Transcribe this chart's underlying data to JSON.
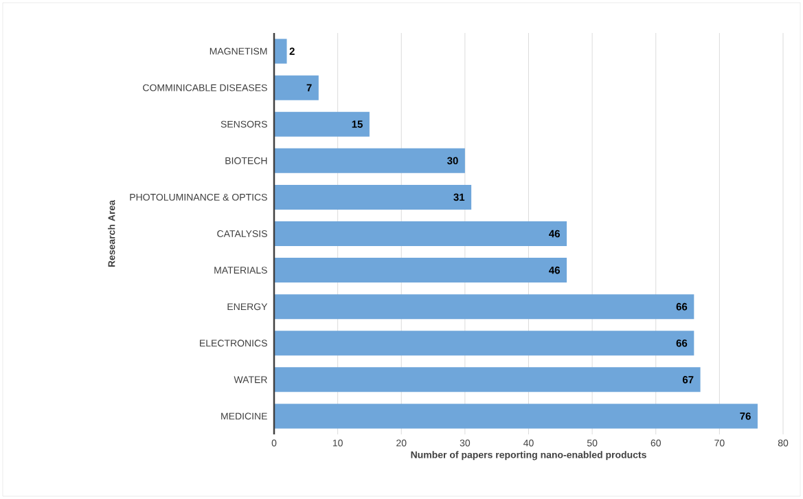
{
  "chart_data": {
    "type": "bar",
    "orientation": "horizontal",
    "xlabel": "Number of papers reporting nano-enabled products",
    "ylabel": "Research Area",
    "categories": [
      "MAGNETISM",
      "COMMINICABLE DISEASES",
      "SENSORS",
      "BIOTECH",
      "PHOTOLUMINANCE & OPTICS",
      "CATALYSIS",
      "MATERIALS",
      "ENERGY",
      "ELECTRONICS",
      "WATER",
      "MEDICINE"
    ],
    "values": [
      2,
      7,
      15,
      30,
      31,
      46,
      46,
      66,
      66,
      67,
      76
    ],
    "color": "#6fa6da",
    "xlim": [
      0,
      80
    ],
    "xticks": [
      0,
      10,
      20,
      30,
      40,
      50,
      60,
      70,
      80
    ],
    "grid": "x",
    "data_labels": true
  }
}
